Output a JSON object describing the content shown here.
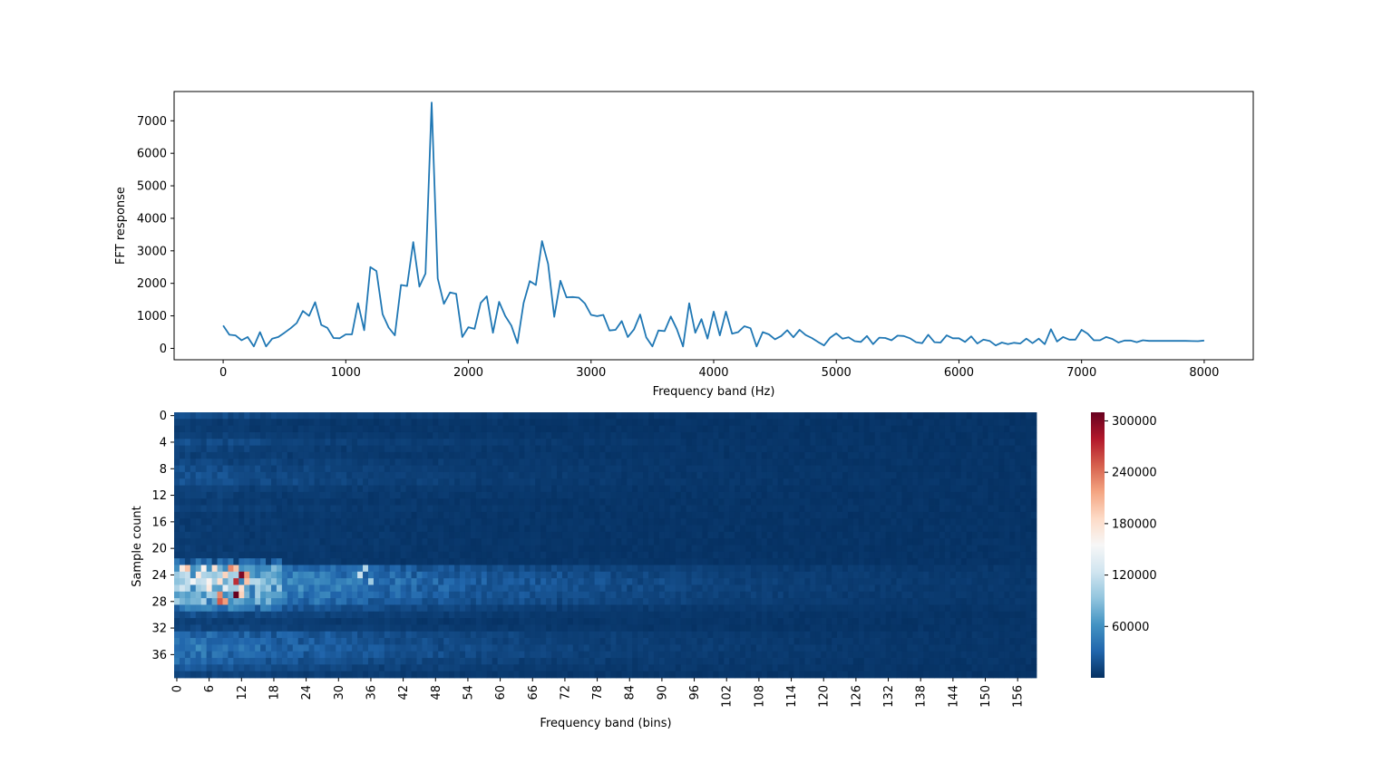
{
  "chart_data": [
    {
      "type": "line",
      "xlabel": "Frequency band (Hz)",
      "ylabel": "FFT response",
      "xlim": [
        -400,
        8400
      ],
      "ylim": [
        -350,
        7900
      ],
      "xticks": [
        0,
        1000,
        2000,
        3000,
        4000,
        5000,
        6000,
        7000,
        8000
      ],
      "yticks": [
        0,
        1000,
        2000,
        3000,
        4000,
        5000,
        6000,
        7000
      ],
      "grid": false,
      "color": "#1f77b4",
      "x": [
        0,
        50,
        100,
        150,
        200,
        250,
        300,
        350,
        400,
        450,
        500,
        550,
        600,
        650,
        700,
        750,
        800,
        850,
        900,
        950,
        1000,
        1050,
        1100,
        1150,
        1200,
        1250,
        1300,
        1350,
        1400,
        1450,
        1500,
        1550,
        1600,
        1650,
        1700,
        1750,
        1800,
        1850,
        1900,
        1950,
        2000,
        2050,
        2100,
        2150,
        2200,
        2250,
        2300,
        2350,
        2400,
        2450,
        2500,
        2550,
        2600,
        2650,
        2700,
        2750,
        2800,
        2850,
        2900,
        2950,
        3000,
        3050,
        3100,
        3150,
        3200,
        3250,
        3300,
        3350,
        3400,
        3450,
        3500,
        3550,
        3600,
        3650,
        3700,
        3750,
        3800,
        3850,
        3900,
        3950,
        4000,
        4050,
        4100,
        4150,
        4200,
        4250,
        4300,
        4350,
        4400,
        4450,
        4500,
        4550,
        4600,
        4650,
        4700,
        4750,
        4800,
        4850,
        4900,
        4950,
        5000,
        5050,
        5100,
        5150,
        5200,
        5250,
        5300,
        5350,
        5400,
        5450,
        5500,
        5550,
        5600,
        5650,
        5700,
        5750,
        5800,
        5850,
        5900,
        5950,
        6000,
        6050,
        6100,
        6150,
        6200,
        6250,
        6300,
        6350,
        6400,
        6450,
        6500,
        6550,
        6600,
        6650,
        6700,
        6750,
        6800,
        6850,
        6900,
        6950,
        7000,
        7050,
        7100,
        7150,
        7200,
        7250,
        7300,
        7350,
        7400,
        7450,
        7500,
        7550,
        7600,
        7650,
        7700,
        7750,
        7800,
        7850,
        7900,
        7950,
        8000
      ],
      "y": [
        700,
        420,
        400,
        250,
        350,
        60,
        500,
        60,
        300,
        350,
        480,
        620,
        780,
        1150,
        1000,
        1420,
        720,
        630,
        320,
        310,
        430,
        430,
        1390,
        560,
        2500,
        2380,
        1050,
        640,
        400,
        1950,
        1920,
        3270,
        1900,
        2300,
        7560,
        2150,
        1370,
        1720,
        1680,
        350,
        650,
        600,
        1400,
        1600,
        480,
        1430,
        1000,
        700,
        160,
        1400,
        2070,
        1950,
        3300,
        2600,
        970,
        2080,
        1570,
        1580,
        1560,
        1380,
        1030,
        990,
        1030,
        550,
        570,
        840,
        350,
        580,
        1040,
        340,
        60,
        550,
        530,
        980,
        590,
        60,
        1390,
        480,
        900,
        300,
        1130,
        400,
        1130,
        450,
        500,
        680,
        620,
        60,
        500,
        430,
        280,
        380,
        560,
        340,
        570,
        410,
        320,
        200,
        90,
        330,
        460,
        300,
        340,
        220,
        200,
        380,
        130,
        330,
        320,
        250,
        390,
        380,
        310,
        190,
        160,
        420,
        190,
        180,
        400,
        310,
        310,
        200,
        370,
        150,
        270,
        230,
        90,
        180,
        130,
        170,
        150,
        300,
        160,
        300,
        130,
        590,
        210,
        350,
        270,
        270,
        570,
        450,
        250,
        250,
        350,
        290,
        180,
        240,
        240,
        190,
        250,
        230,
        230,
        230,
        230,
        230,
        230,
        230,
        225,
        220,
        240
      ]
    },
    {
      "type": "heatmap",
      "xlabel": "Frequency band (bins)",
      "ylabel": "Sample count",
      "n_cols": 160,
      "n_rows": 40,
      "xticks": [
        0,
        6,
        12,
        18,
        24,
        30,
        36,
        42,
        48,
        54,
        60,
        66,
        72,
        78,
        84,
        90,
        96,
        102,
        108,
        114,
        120,
        126,
        132,
        138,
        144,
        150,
        156
      ],
      "yticks": [
        0,
        4,
        8,
        12,
        16,
        20,
        24,
        28,
        32,
        36
      ],
      "colormap": "RdBu_r",
      "vmin": 0,
      "vmax": 310000,
      "colorbar_ticks": [
        60000,
        120000,
        180000,
        240000,
        300000
      ],
      "row_profile": [
        15000,
        5000,
        5000,
        8000,
        15000,
        10000,
        8000,
        12000,
        15000,
        18000,
        18000,
        10000,
        8000,
        5000,
        8000,
        5000,
        5000,
        5000,
        5000,
        5000,
        5000,
        5000,
        5000,
        55000,
        75000,
        85000,
        80000,
        70000,
        60000,
        30000,
        15000,
        8000,
        12000,
        35000,
        38000,
        45000,
        40000,
        30000,
        20000,
        10000
      ],
      "hot_cells": [
        {
          "row": 23,
          "col": 1,
          "value": 170000
        },
        {
          "row": 23,
          "col": 2,
          "value": 200000
        },
        {
          "row": 23,
          "col": 5,
          "value": 160000
        },
        {
          "row": 23,
          "col": 7,
          "value": 180000
        },
        {
          "row": 23,
          "col": 10,
          "value": 230000
        },
        {
          "row": 23,
          "col": 11,
          "value": 200000
        },
        {
          "row": 24,
          "col": 4,
          "value": 170000
        },
        {
          "row": 24,
          "col": 9,
          "value": 190000
        },
        {
          "row": 24,
          "col": 12,
          "value": 300000
        },
        {
          "row": 24,
          "col": 13,
          "value": 220000
        },
        {
          "row": 25,
          "col": 3,
          "value": 150000
        },
        {
          "row": 25,
          "col": 6,
          "value": 160000
        },
        {
          "row": 25,
          "col": 8,
          "value": 180000
        },
        {
          "row": 25,
          "col": 11,
          "value": 270000
        },
        {
          "row": 25,
          "col": 13,
          "value": 200000
        },
        {
          "row": 26,
          "col": 6,
          "value": 170000
        },
        {
          "row": 26,
          "col": 9,
          "value": 140000
        },
        {
          "row": 26,
          "col": 12,
          "value": 180000
        },
        {
          "row": 27,
          "col": 8,
          "value": 230000
        },
        {
          "row": 27,
          "col": 11,
          "value": 310000
        },
        {
          "row": 27,
          "col": 12,
          "value": 190000
        },
        {
          "row": 28,
          "col": 8,
          "value": 250000
        },
        {
          "row": 28,
          "col": 9,
          "value": 220000
        },
        {
          "row": 23,
          "col": 35,
          "value": 110000
        },
        {
          "row": 24,
          "col": 34,
          "value": 120000
        },
        {
          "row": 25,
          "col": 36,
          "value": 100000
        }
      ]
    }
  ]
}
